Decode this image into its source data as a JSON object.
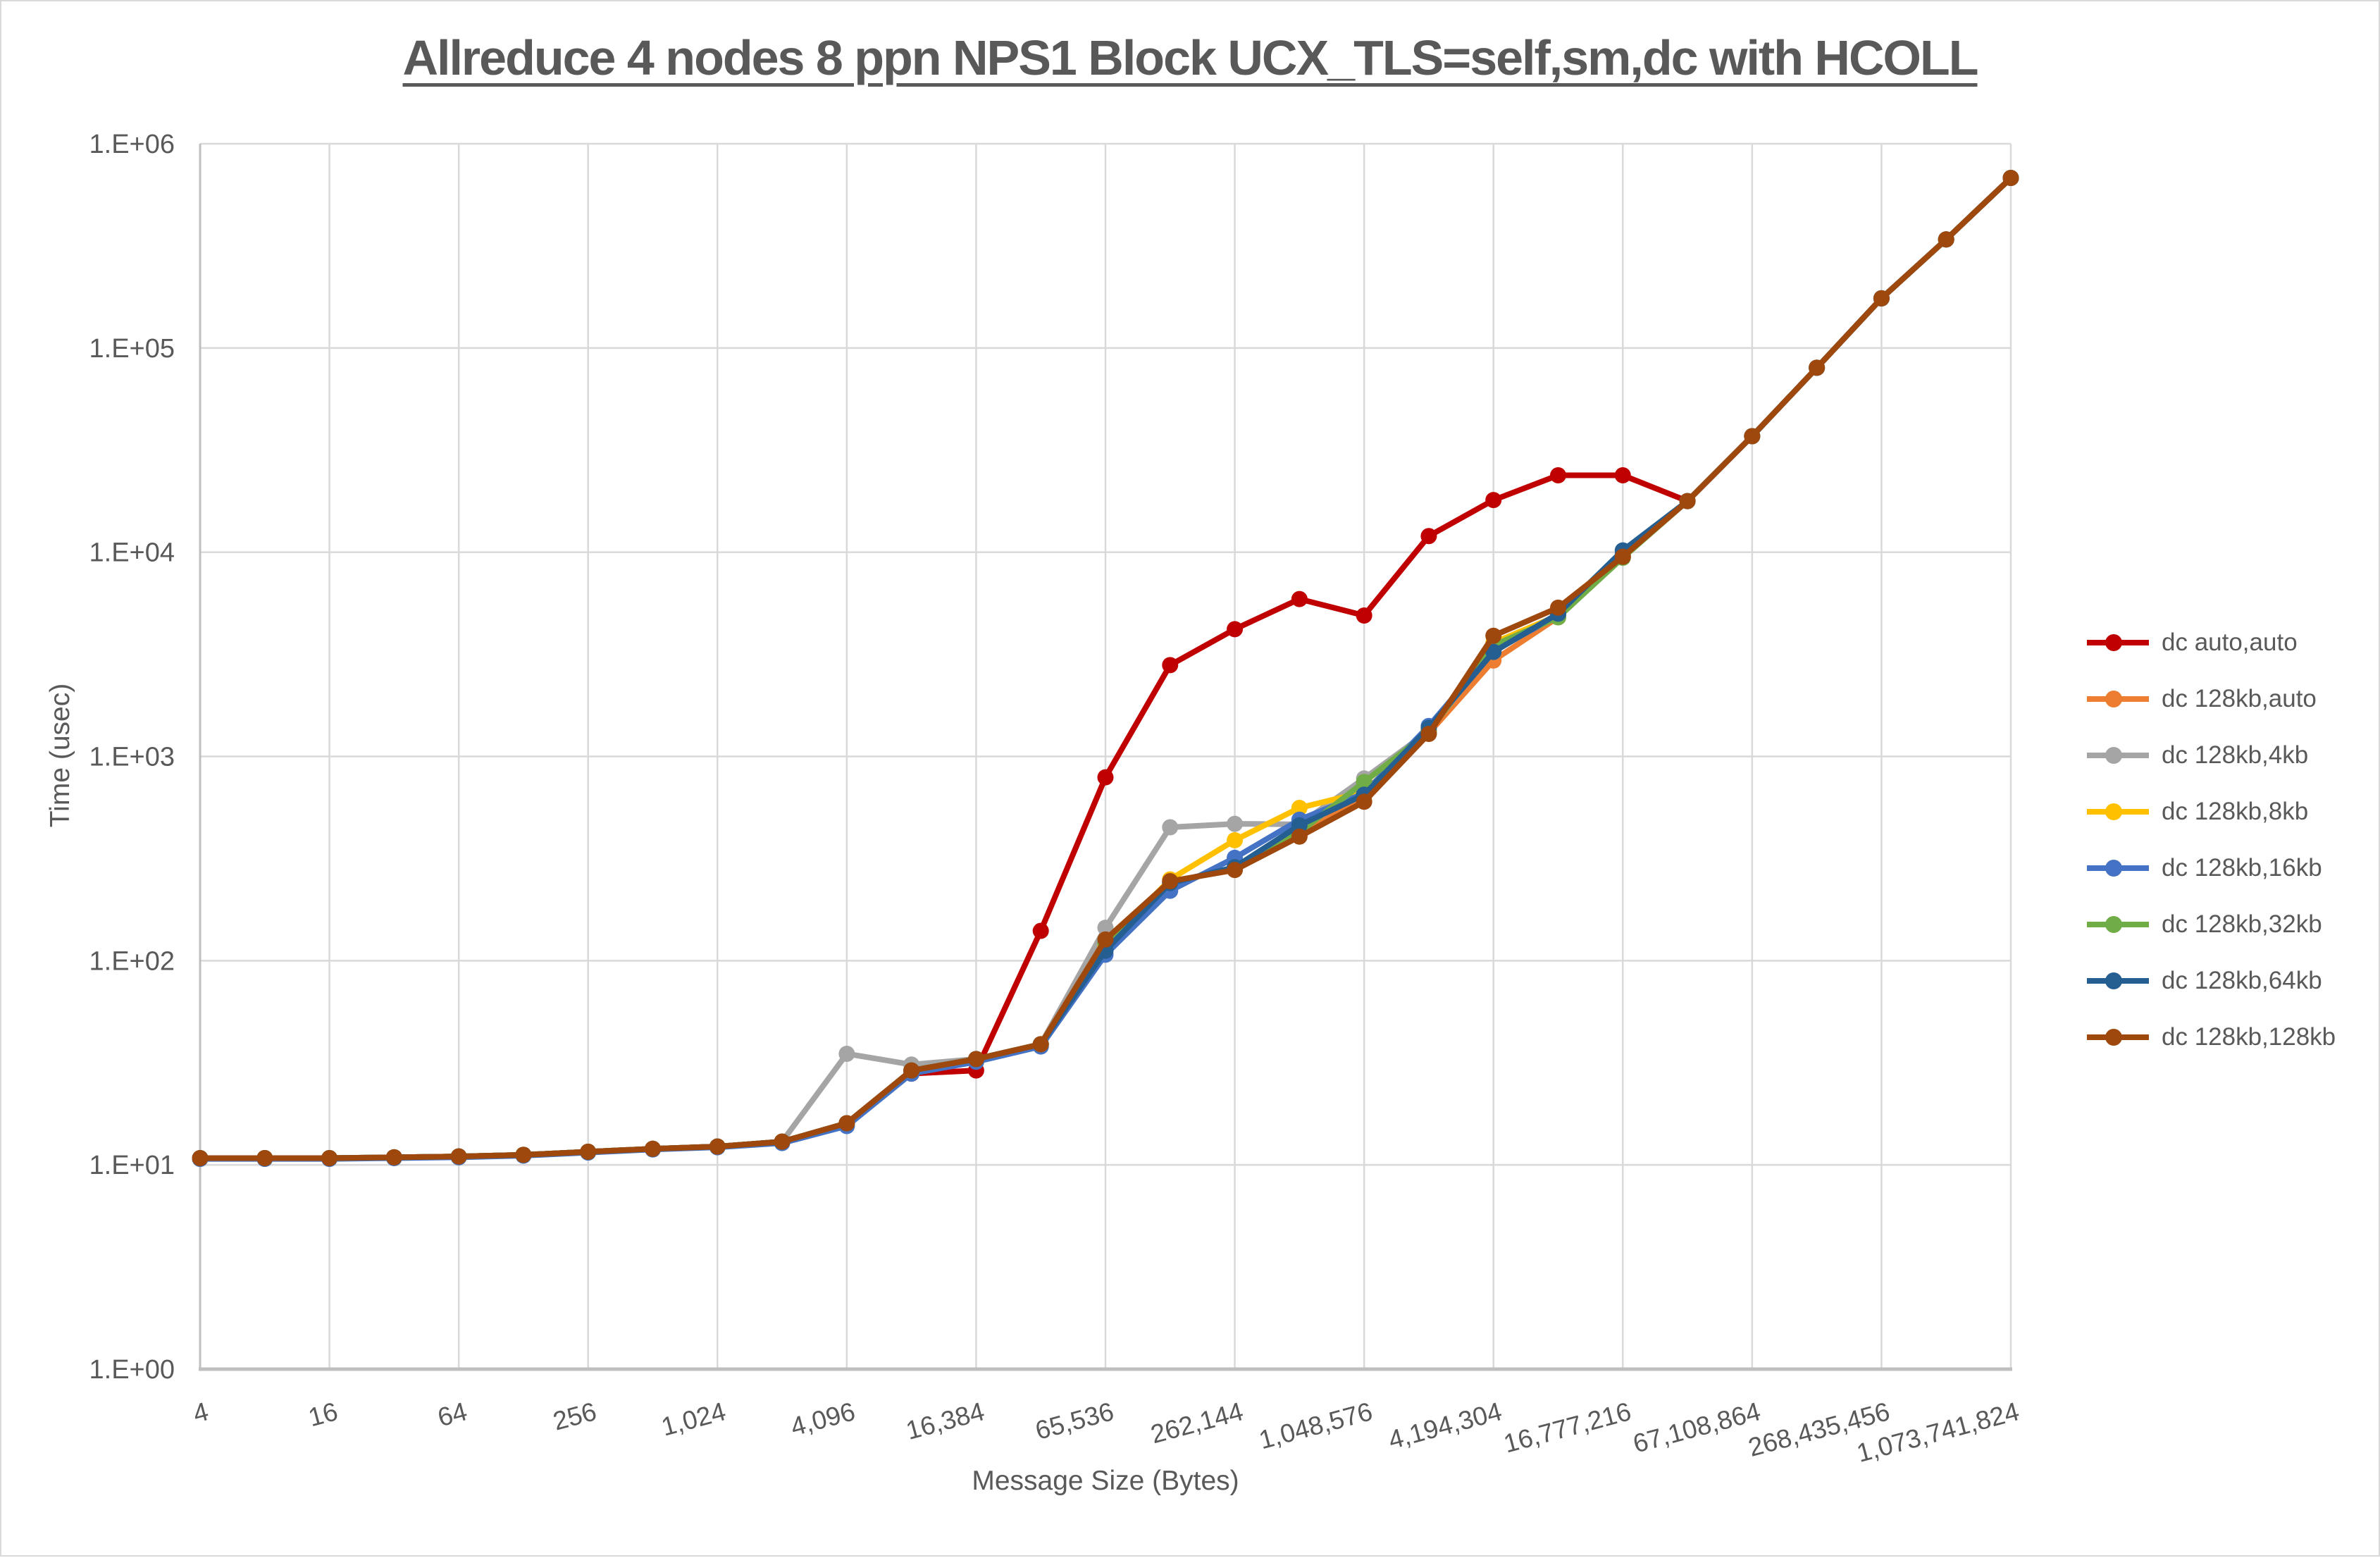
{
  "style": {
    "background": "#FFFFFF",
    "frame_border_color": "#D9D9D9",
    "gridline_color": "#D9D9D9",
    "axis_line_color": "#BFBFBF",
    "text_color": "#595959",
    "title_color": "#595959"
  },
  "chart_data": {
    "type": "line",
    "title": "Allreduce 4 nodes 8 ppn NPS1 Block UCX_TLS=self,sm,dc with HCOLL",
    "xlabel": "Message Size (Bytes)",
    "ylabel": "Time (usec)",
    "x_scale": "log",
    "y_scale": "log",
    "ylim": [
      1,
      1000000
    ],
    "grid": true,
    "legend_position": "right",
    "x_values": [
      4,
      8,
      16,
      32,
      64,
      128,
      256,
      512,
      1024,
      2048,
      4096,
      8192,
      16384,
      32768,
      65536,
      131072,
      262144,
      524288,
      1048576,
      2097152,
      4194304,
      8388608,
      16777216,
      33554432,
      67108864,
      134217728,
      268435456,
      536870912,
      1073741824
    ],
    "x_tick_labels": [
      "4",
      "16",
      "64",
      "256",
      "1,024",
      "4,096",
      "16,384",
      "65,536",
      "262,144",
      "1,048,576",
      "4,194,304",
      "16,777,216",
      "67,108,864",
      "268,435,456",
      "1,073,741,824"
    ],
    "y_tick_labels": [
      "1.E+00",
      "1.E+01",
      "1.E+02",
      "1.E+03",
      "1.E+04",
      "1.E+05",
      "1.E+06"
    ],
    "series": [
      {
        "name": "dc auto,auto",
        "color": "#C00000",
        "values": [
          10.8,
          10.8,
          10.8,
          10.9,
          11,
          11.2,
          11.6,
          12,
          12.3,
          13,
          16,
          28,
          29,
          140,
          790,
          2800,
          4200,
          5900,
          4900,
          12000,
          18000,
          23800,
          23800,
          17800,
          37000,
          80000,
          175000,
          340000,
          680000
        ]
      },
      {
        "name": "dc 128kb,auto",
        "color": "#ED7D31",
        "values": [
          10.8,
          10.8,
          10.8,
          10.9,
          11,
          11.2,
          11.6,
          12,
          12.3,
          13,
          16,
          29,
          33,
          39,
          123,
          243,
          281,
          412,
          640,
          1300,
          2950,
          4800,
          9500,
          17800,
          37000,
          80000,
          175000,
          340000,
          680000
        ]
      },
      {
        "name": "dc 128kb,4kb",
        "color": "#A5A5A5",
        "values": [
          10.8,
          10.8,
          10.8,
          10.9,
          11,
          11.2,
          11.6,
          12,
          12.3,
          13,
          35,
          31,
          33,
          39,
          145,
          450,
          468,
          465,
          780,
          1330,
          3400,
          4900,
          9500,
          17800,
          37000,
          80000,
          175000,
          340000,
          680000
        ]
      },
      {
        "name": "dc 128kb,8kb",
        "color": "#FFC000",
        "values": [
          10.8,
          10.8,
          10.8,
          10.9,
          11,
          11.2,
          11.6,
          12,
          12.3,
          13,
          16,
          29,
          33,
          39,
          118,
          250,
          389,
          560,
          670,
          1350,
          3600,
          4900,
          9600,
          17800,
          37000,
          80000,
          175000,
          340000,
          680000
        ]
      },
      {
        "name": "dc 128kb,16kb",
        "color": "#4472C4",
        "values": [
          10.7,
          10.7,
          10.7,
          10.8,
          10.9,
          11.1,
          11.5,
          11.9,
          12.2,
          12.8,
          15.5,
          28,
          32,
          38,
          107,
          220,
          319,
          490,
          660,
          1410,
          3300,
          4900,
          9800,
          17800,
          37000,
          80000,
          175000,
          340000,
          680000
        ]
      },
      {
        "name": "dc 128kb,32kb",
        "color": "#70AD47",
        "values": [
          10.8,
          10.8,
          10.8,
          10.9,
          11,
          11.2,
          11.6,
          12,
          12.3,
          13,
          16,
          29,
          33,
          39,
          122,
          242,
          283,
          425,
          750,
          1320,
          3500,
          4800,
          9400,
          17800,
          37000,
          80000,
          175000,
          340000,
          680000
        ]
      },
      {
        "name": "dc 128kb,64kb",
        "color": "#255E91",
        "values": [
          10.8,
          10.8,
          10.8,
          10.9,
          11,
          11.2,
          11.6,
          12,
          12.3,
          13,
          16,
          29,
          33,
          39,
          112,
          240,
          287,
          460,
          650,
          1380,
          3250,
          5000,
          10200,
          17800,
          37000,
          80000,
          175000,
          340000,
          680000
        ]
      },
      {
        "name": "dc 128kb,128kb",
        "color": "#9E480E",
        "values": [
          10.8,
          10.8,
          10.8,
          10.9,
          11,
          11.2,
          11.6,
          12,
          12.3,
          13,
          16,
          29,
          33,
          39,
          127,
          245,
          278,
          405,
          600,
          1290,
          3900,
          5350,
          9500,
          17800,
          37000,
          80000,
          175000,
          340000,
          680000
        ]
      }
    ]
  }
}
